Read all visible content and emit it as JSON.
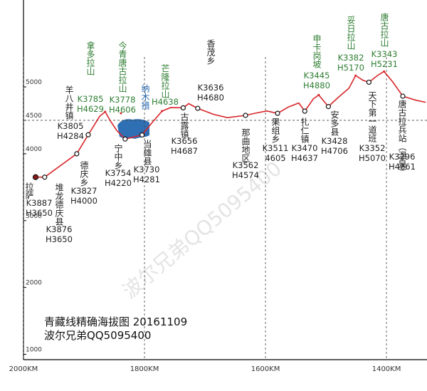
{
  "chart_data": {
    "type": "line",
    "title": "青藏线精确海拔图 20161109",
    "subtitle": "波尔兄弟QQ5095400",
    "watermark": "波尔兄弟QQ5095400",
    "lake_label": "纳木措",
    "xlim": [
      2000,
      1333
    ],
    "ylim": [
      920,
      6300
    ],
    "xticks": [
      {
        "value": 2000,
        "label": "2000KM"
      },
      {
        "value": 1800,
        "label": "1800KM"
      },
      {
        "value": 1600,
        "label": "1600KM"
      },
      {
        "value": 1400,
        "label": "1400KM"
      }
    ],
    "yticks": [
      1000,
      2000,
      3000,
      4000,
      4500,
      5000
    ],
    "hline": 4500,
    "series": [
      {
        "color": "#d7262a",
        "x": [
          1980,
          1965,
          1912,
          1893,
          1874,
          1865,
          1857,
          1846,
          1832,
          1818,
          1804,
          1786,
          1771,
          1757,
          1736,
          1727,
          1712,
          1686,
          1663,
          1633,
          1615,
          1598,
          1580,
          1562,
          1545,
          1535,
          1521,
          1512,
          1496,
          1480,
          1462,
          1451,
          1439,
          1429,
          1415,
          1404,
          1390,
          1373,
          1351,
          1335
        ],
        "values": [
          3650,
          3650,
          4000,
          4284,
          4560,
          4629,
          4500,
          4350,
          4220,
          4250,
          4281,
          4480,
          4638,
          4690,
          4687,
          4750,
          4680,
          4590,
          4540,
          4574,
          4610,
          4640,
          4605,
          4700,
          4760,
          4637,
          4820,
          4880,
          4706,
          4840,
          4980,
          5170,
          5100,
          5070,
          5170,
          5231,
          5080,
          4861,
          4800,
          4770
        ]
      }
    ],
    "stations": [
      {
        "name": "拉萨",
        "color": "#222222",
        "x": 1980,
        "km": "K3887",
        "elevation": 3650,
        "elevation_label": "H3650"
      },
      {
        "name": "堆龙德庆县",
        "color": "#222222",
        "x": 1965,
        "km": "K3876",
        "elevation": 3650,
        "elevation_label": "H3650"
      },
      {
        "name": "德庆乡",
        "color": "#222222",
        "x": 1912,
        "km": "K3827",
        "elevation": 4000,
        "elevation_label": "H4000"
      },
      {
        "name": "羊八井镇",
        "color": "#222222",
        "x": 1893,
        "km": "K3805",
        "elevation": 4284,
        "elevation_label": "H4284"
      },
      {
        "name": "拿多拉山",
        "color": "#2e7d32",
        "x": 1865,
        "km": "K3785",
        "elevation": 4629,
        "elevation_label": "H4629"
      },
      {
        "name": "今青唐古拉山",
        "color": "#2e7d32",
        "x": 1839,
        "km": "K3778",
        "elevation": 4606,
        "elevation_label": "H4606"
      },
      {
        "name": "宁中乡",
        "color": "#222222",
        "x": 1832,
        "km": "K3754",
        "elevation": 4220,
        "elevation_label": "H4220"
      },
      {
        "name": "当雄县",
        "color": "#222222",
        "x": 1804,
        "km": "K3730",
        "elevation": 4281,
        "elevation_label": "H4281"
      },
      {
        "name": "芒隆拉山",
        "color": "#2e7d32",
        "x": 1771,
        "elevation": 4638,
        "elevation_label": "H4638"
      },
      {
        "name": "古露镇",
        "color": "#222222",
        "x": 1736,
        "km": "K3656",
        "elevation": 4687,
        "elevation_label": "H4687"
      },
      {
        "name": "香茂乡",
        "color": "#222222",
        "x": 1712,
        "km": "K3636",
        "elevation": 4680,
        "elevation_label": "H4680"
      },
      {
        "name": "那曲地区",
        "color": "#222222",
        "x": 1633,
        "km": "K3562",
        "elevation": 4574,
        "elevation_label": "H4574"
      },
      {
        "name": "果组乡",
        "color": "#222222",
        "x": 1580,
        "km": "K3511",
        "elevation": 4605
      },
      {
        "name": "扎仁镇",
        "color": "#222222",
        "x": 1535,
        "km": "K3470",
        "elevation": 4637,
        "elevation_label": "H4637"
      },
      {
        "name": "申卡岗坡",
        "color": "#2e7d32",
        "x": 1512,
        "km": "K3445",
        "elevation": 4880,
        "elevation_label": "H4880"
      },
      {
        "name": "安多县",
        "color": "#222222",
        "x": 1496,
        "km": "K3428",
        "elevation": 4706,
        "elevation_label": "H4706"
      },
      {
        "name": "妥日拉山",
        "color": "#2e7d32",
        "x": 1451,
        "km": "K3382",
        "elevation": 5170,
        "elevation_label": "H5170"
      },
      {
        "name": "天下第一道班",
        "color": "#222222",
        "x": 1429,
        "km": "K3352",
        "elevation": 5070,
        "elevation_label": "H5070"
      },
      {
        "name": "唐古拉山",
        "color": "#2e7d32",
        "x": 1404,
        "km": "K3343",
        "elevation": 5231,
        "elevation_label": "H5231"
      },
      {
        "name": "唐古拉兵站（温泉）",
        "color": "#222222",
        "x": 1373,
        "km": "K3296",
        "elevation": 4861,
        "elevation_label": "H4861"
      }
    ]
  }
}
